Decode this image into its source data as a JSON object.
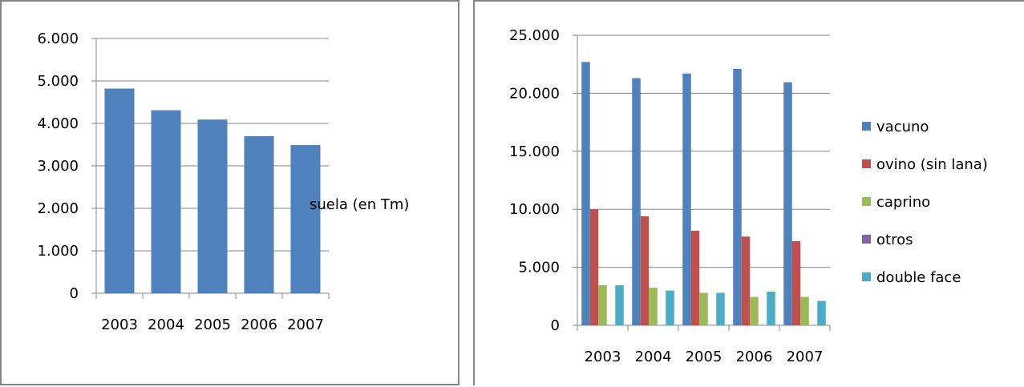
{
  "chart_data": [
    {
      "type": "bar",
      "categories": [
        "2003",
        "2004",
        "2005",
        "2006",
        "2007"
      ],
      "series": [
        {
          "name": "suela  (en Tm)",
          "color": "#4F81BD",
          "values": [
            4820,
            4310,
            4090,
            3700,
            3490
          ]
        }
      ],
      "yticks": [
        "0",
        "1.000",
        "2.000",
        "3.000",
        "4.000",
        "5.000",
        "6.000"
      ],
      "ylim": [
        0,
        6000
      ],
      "grid": true,
      "legend": "right"
    },
    {
      "type": "bar",
      "categories": [
        "2003",
        "2004",
        "2005",
        "2006",
        "2007"
      ],
      "series": [
        {
          "name": "vacuno",
          "color": "#4F81BD",
          "values": [
            22700,
            21300,
            21700,
            22100,
            20950
          ]
        },
        {
          "name": "ovino (sin lana)",
          "color": "#C0504D",
          "values": [
            10000,
            9400,
            8150,
            7650,
            7250
          ]
        },
        {
          "name": "caprino",
          "color": "#9BBB59",
          "values": [
            3450,
            3250,
            2800,
            2450,
            2450
          ]
        },
        {
          "name": "otros",
          "color": "#8064A2",
          "values": [
            0,
            0,
            0,
            0,
            0
          ]
        },
        {
          "name": "double face",
          "color": "#4BACC6",
          "values": [
            3450,
            3000,
            2800,
            2900,
            2100
          ]
        }
      ],
      "yticks": [
        "0",
        "5.000",
        "10.000",
        "15.000",
        "20.000",
        "25.000"
      ],
      "ylim": [
        0,
        25000
      ],
      "grid": true,
      "legend": "right"
    }
  ]
}
